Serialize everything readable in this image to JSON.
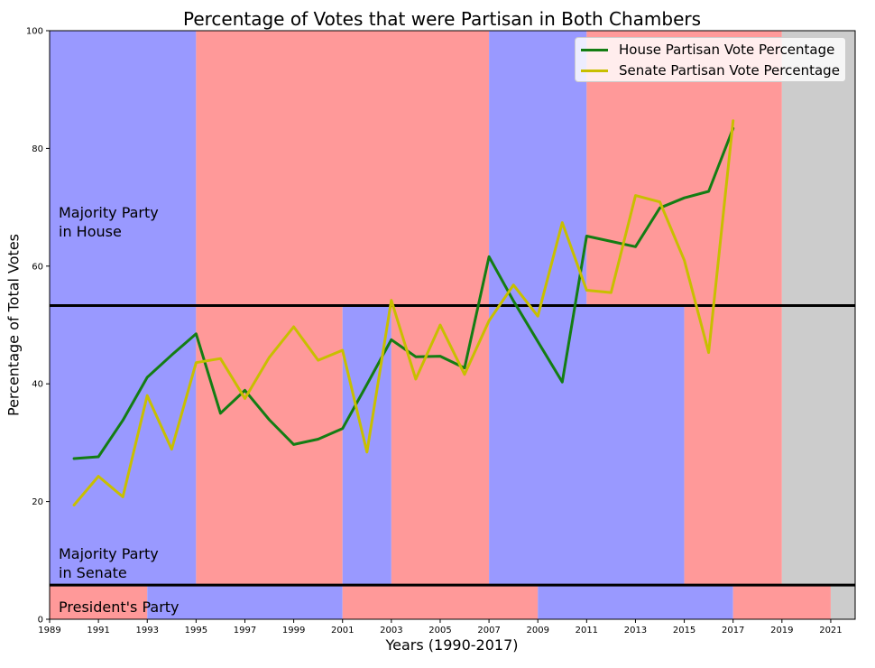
{
  "chart_data": {
    "type": "line",
    "title": "Percentage of Votes that were Partisan in Both Chambers",
    "xlabel": "Years (1990-2017)",
    "ylabel": "Percentage of Total Votes",
    "xlim": [
      1989,
      2022
    ],
    "ylim": [
      0,
      100
    ],
    "x_ticks": [
      1989,
      1991,
      1993,
      1995,
      1997,
      1999,
      2001,
      2003,
      2005,
      2007,
      2009,
      2011,
      2013,
      2015,
      2017,
      2019,
      2021
    ],
    "y_ticks": [
      0,
      20,
      40,
      60,
      80,
      100
    ],
    "grid": false,
    "legend_position": "top-right",
    "x": [
      1990,
      1991,
      1992,
      1993,
      1994,
      1995,
      1996,
      1997,
      1998,
      1999,
      2000,
      2001,
      2002,
      2003,
      2004,
      2005,
      2006,
      2007,
      2008,
      2009,
      2010,
      2011,
      2012,
      2013,
      2014,
      2015,
      2016,
      2017
    ],
    "series": [
      {
        "name": "House Partisan Vote Percentage",
        "color": "#137d13",
        "values": [
          27.3,
          27.6,
          33.8,
          41.1,
          44.9,
          48.5,
          35.0,
          38.9,
          33.9,
          29.7,
          30.6,
          32.4,
          39.9,
          47.5,
          44.6,
          44.7,
          42.7,
          61.6,
          54.1,
          47.2,
          40.3,
          65.1,
          64.2,
          63.3,
          69.9,
          71.6,
          72.7,
          83.4
        ]
      },
      {
        "name": "Senate Partisan Vote Percentage",
        "color": "#c8bf00",
        "values": [
          19.4,
          24.3,
          20.8,
          38.0,
          28.9,
          43.6,
          44.3,
          37.5,
          44.5,
          49.7,
          44.0,
          45.7,
          28.4,
          54.2,
          40.8,
          50.0,
          41.6,
          50.7,
          56.8,
          51.5,
          67.4,
          55.9,
          55.5,
          72.0,
          70.9,
          61.0,
          45.3,
          84.7
        ]
      }
    ],
    "party_bands": {
      "colors": {
        "D": "#9999ff",
        "R": "#ff9999",
        "none": "#cccccc"
      },
      "house": {
        "label": "Majority Party\nin House",
        "y_range": [
          53.3,
          100
        ],
        "spans": [
          [
            1989,
            1995,
            "D"
          ],
          [
            1995,
            2007,
            "R"
          ],
          [
            2007,
            2011,
            "D"
          ],
          [
            2011,
            2019,
            "R"
          ],
          [
            2019,
            2022,
            "none"
          ]
        ]
      },
      "senate": {
        "label": "Majority Party\nin Senate",
        "y_range": [
          5.8,
          53.3
        ],
        "spans": [
          [
            1989,
            1995,
            "D"
          ],
          [
            1995,
            2001,
            "R"
          ],
          [
            2001,
            2003,
            "D"
          ],
          [
            2003,
            2007,
            "R"
          ],
          [
            2007,
            2015,
            "D"
          ],
          [
            2015,
            2019,
            "R"
          ],
          [
            2019,
            2022,
            "none"
          ]
        ]
      },
      "president": {
        "label": "President's Party",
        "y_range": [
          0,
          5.8
        ],
        "spans": [
          [
            1989,
            1993,
            "R"
          ],
          [
            1993,
            2001,
            "D"
          ],
          [
            2001,
            2009,
            "R"
          ],
          [
            2009,
            2017,
            "D"
          ],
          [
            2017,
            2021,
            "R"
          ],
          [
            2021,
            2022,
            "none"
          ]
        ]
      }
    }
  }
}
